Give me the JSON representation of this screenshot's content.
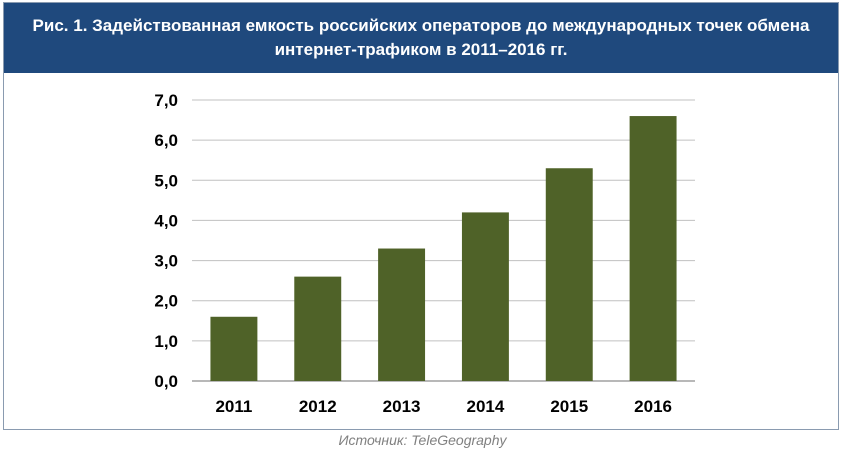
{
  "title": "Рис. 1. Задействованная емкость российских операторов до международных точек обмена интернет-трафиком в 2011–2016 гг.",
  "source": "Источник: TeleGeography",
  "colors": {
    "header_bg": "#1f497d",
    "bar": "#4f6228",
    "grid": "#c0c0c0"
  },
  "chart_data": {
    "type": "bar",
    "title": "Рис. 1. Задействованная емкость российских операторов до международных точек обмена интернет-трафиком в 2011–2016 гг.",
    "categories": [
      "2011",
      "2012",
      "2013",
      "2014",
      "2015",
      "2016"
    ],
    "values": [
      1.6,
      2.6,
      3.3,
      4.2,
      5.3,
      6.6
    ],
    "xlabel": "",
    "ylabel": "",
    "ylim": [
      0,
      7
    ],
    "yticks": [
      "0,0",
      "1,0",
      "2,0",
      "3,0",
      "4,0",
      "5,0",
      "6,0",
      "7,0"
    ],
    "grid": true,
    "legend": "none"
  }
}
